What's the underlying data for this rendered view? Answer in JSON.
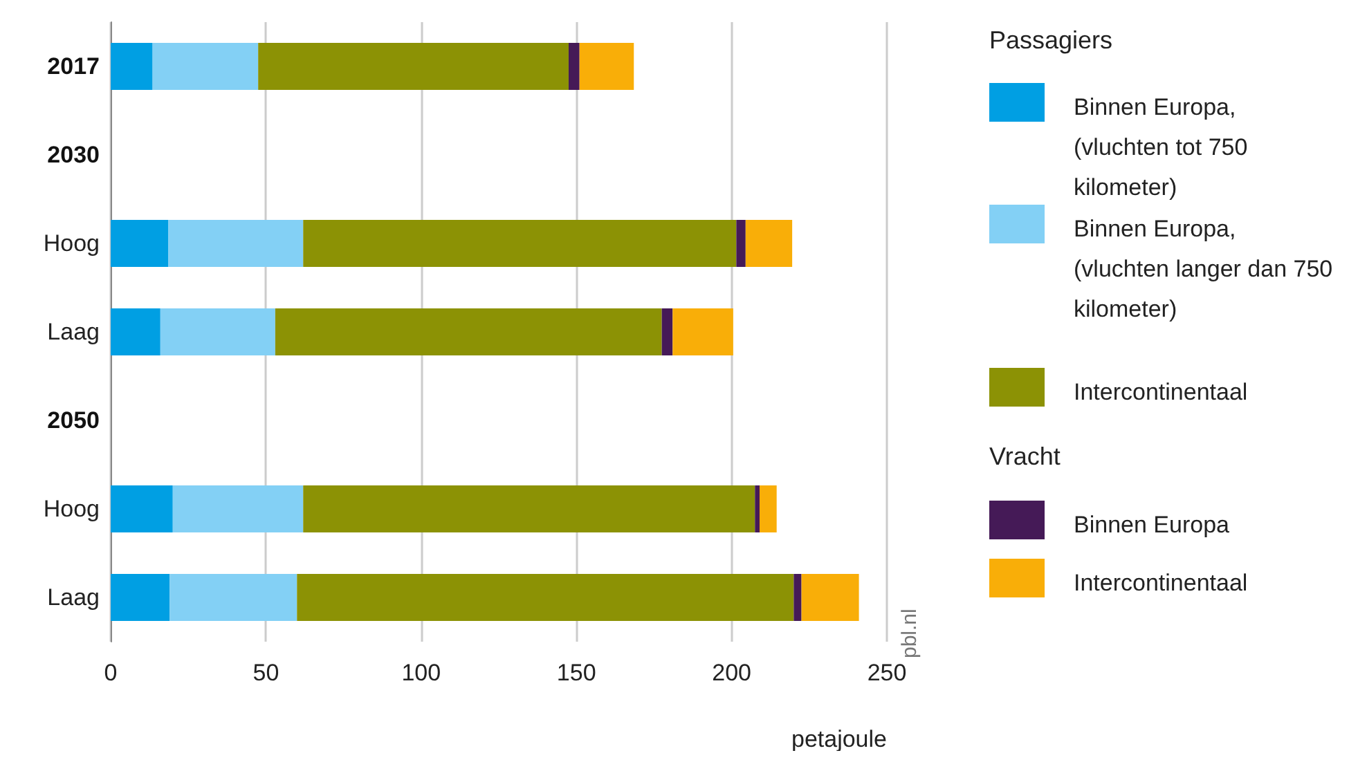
{
  "chart_data": {
    "type": "bar",
    "orientation": "horizontal",
    "stacked": true,
    "categories": [
      "2017",
      "2030",
      "Hoog",
      "Laag",
      "2050",
      "Hoog",
      "Laag"
    ],
    "series": [
      {
        "name": "Binnen Europa, (vluchten tot 750 kilometer)",
        "color": "#009fe3",
        "values": [
          13.5,
          null,
          18.5,
          16,
          null,
          20,
          19
        ]
      },
      {
        "name": "Binnen Europa, (vluchten langer dan 750 kilometer)",
        "color": "#83d0f5",
        "values": [
          34,
          null,
          43.5,
          37,
          null,
          42,
          41
        ]
      },
      {
        "name": "Intercontinentaal",
        "color": "#8c9205",
        "values": [
          100,
          null,
          139.5,
          124.5,
          null,
          145.5,
          160
        ]
      },
      {
        "name": "Binnen Europa",
        "color": "#451a57",
        "values": [
          3.5,
          null,
          3,
          3.5,
          null,
          1.5,
          2.5
        ]
      },
      {
        "name": "Intercontinentaal",
        "color": "#f9ae08",
        "values": [
          17.5,
          null,
          15,
          19.5,
          null,
          5.5,
          18.5
        ]
      }
    ],
    "xlabel": "petajoule",
    "xlim": [
      0,
      250
    ],
    "xticks": [
      0,
      50,
      100,
      150,
      200,
      250
    ],
    "grid": "x",
    "legend": "right",
    "legend_title": "Passagiers",
    "annotations": [
      "Vracht",
      "pbl.nl"
    ]
  }
}
